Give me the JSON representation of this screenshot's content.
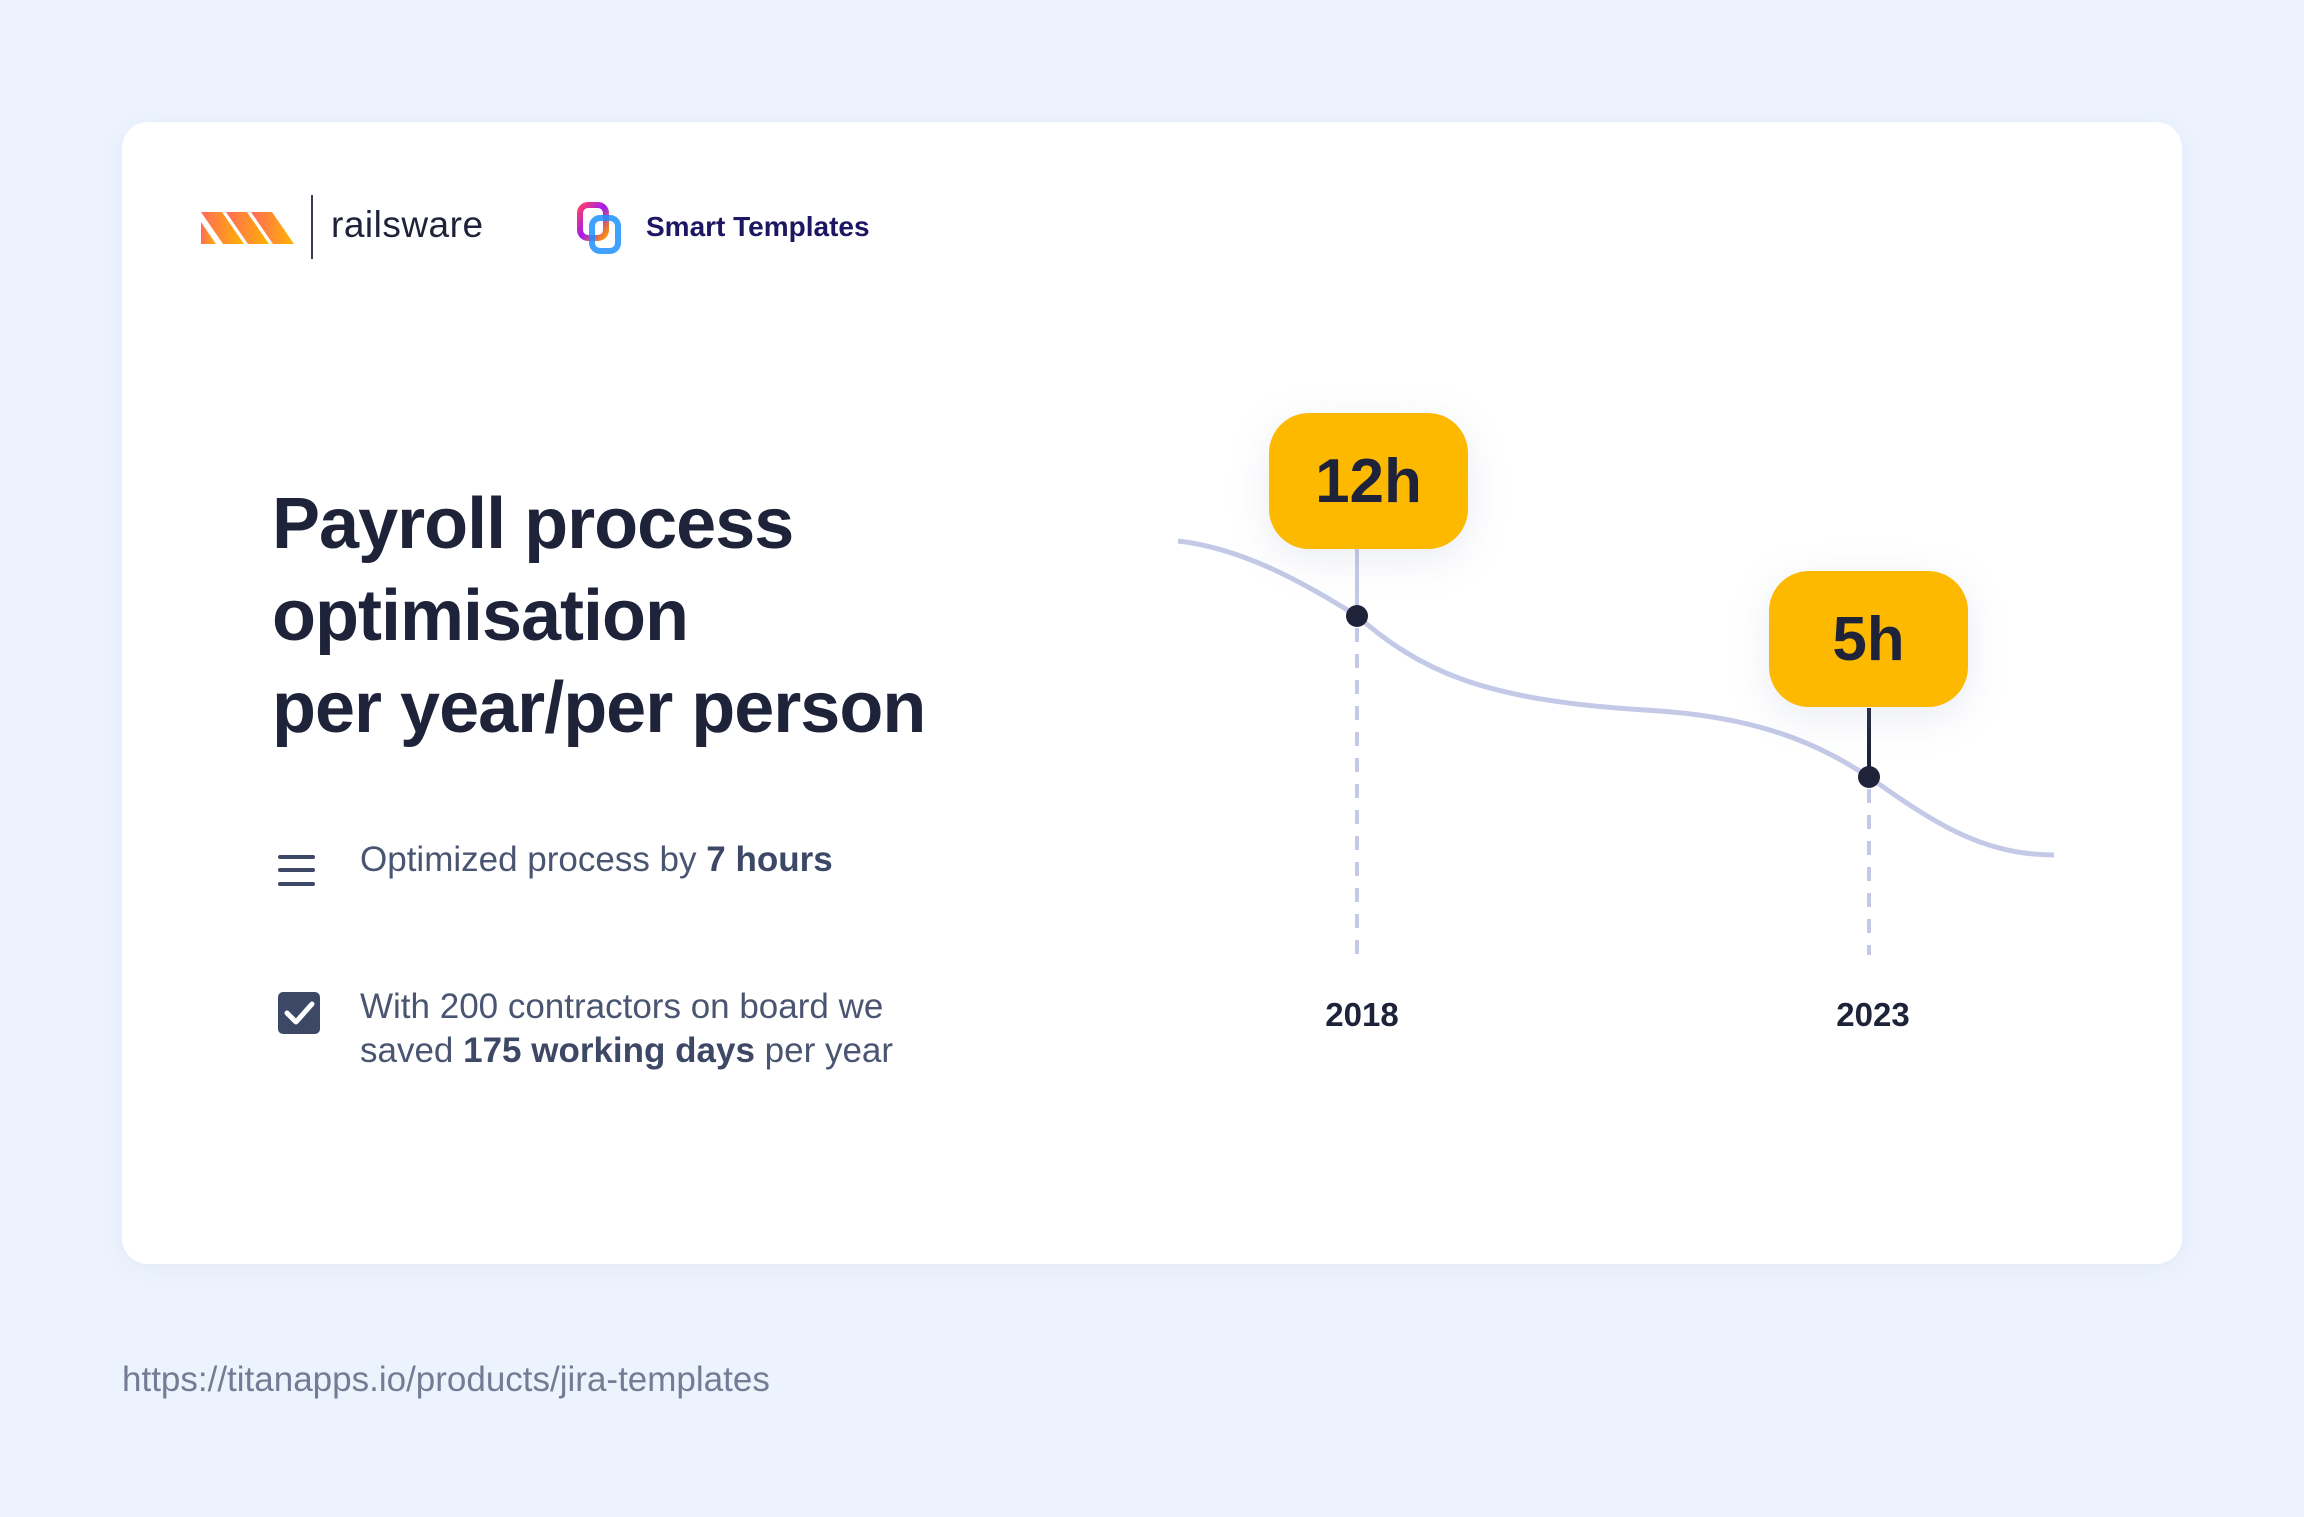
{
  "header": {
    "company_logo": "railsware",
    "product_logo": "Smart Templates"
  },
  "title_lines": [
    "Payroll process",
    "optimisation",
    "per year/per person"
  ],
  "items": [
    {
      "icon": "menu-lines-icon",
      "text_before": "Optimized process by ",
      "bold": "7 hours",
      "text_after": ""
    },
    {
      "icon": "checkbox-checked-icon",
      "line1": "With 200 contractors on board we",
      "text_before": "saved ",
      "bold": "175 working days",
      "text_after": " per year"
    }
  ],
  "footer": {
    "url": "https://titanapps.io/products/jira-templates"
  },
  "colors": {
    "badge": "#fdb900",
    "curve": "#c3c9e6",
    "text": "#1f2339",
    "background": "#edf3fd"
  },
  "chart_data": {
    "type": "line",
    "categories": [
      "2018",
      "2023"
    ],
    "values": [
      12,
      5
    ],
    "data_labels": [
      "12h",
      "5h"
    ],
    "title": "",
    "xlabel": "",
    "ylabel": "",
    "grid": false
  }
}
